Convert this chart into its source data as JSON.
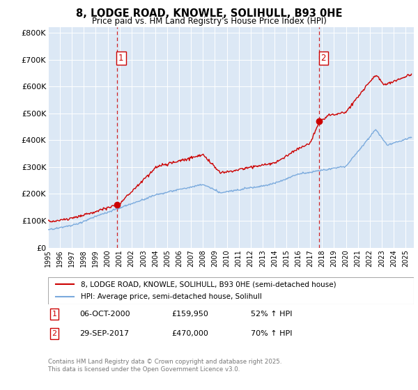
{
  "title": "8, LODGE ROAD, KNOWLE, SOLIHULL, B93 0HE",
  "subtitle": "Price paid vs. HM Land Registry's House Price Index (HPI)",
  "legend_label_red": "8, LODGE ROAD, KNOWLE, SOLIHULL, B93 0HE (semi-detached house)",
  "legend_label_blue": "HPI: Average price, semi-detached house, Solihull",
  "annotation1_date": "06-OCT-2000",
  "annotation1_price": "£159,950",
  "annotation1_hpi": "52% ↑ HPI",
  "annotation2_date": "29-SEP-2017",
  "annotation2_price": "£470,000",
  "annotation2_hpi": "70% ↑ HPI",
  "footnote": "Contains HM Land Registry data © Crown copyright and database right 2025.\nThis data is licensed under the Open Government Licence v3.0.",
  "red_color": "#cc0000",
  "blue_color": "#7aaadd",
  "vline_color": "#cc0000",
  "plot_bg_color": "#dce8f5",
  "background_color": "#ffffff",
  "ylim": [
    0,
    820000
  ],
  "yticks": [
    0,
    100000,
    200000,
    300000,
    400000,
    500000,
    600000,
    700000,
    800000
  ],
  "ytick_labels": [
    "£0",
    "£100K",
    "£200K",
    "£300K",
    "£400K",
    "£500K",
    "£600K",
    "£700K",
    "£800K"
  ],
  "xlim_start": 1995.0,
  "xlim_end": 2025.7,
  "marker1_x": 2000.76,
  "marker1_y": 159950,
  "marker2_x": 2017.75,
  "marker2_y": 470000
}
